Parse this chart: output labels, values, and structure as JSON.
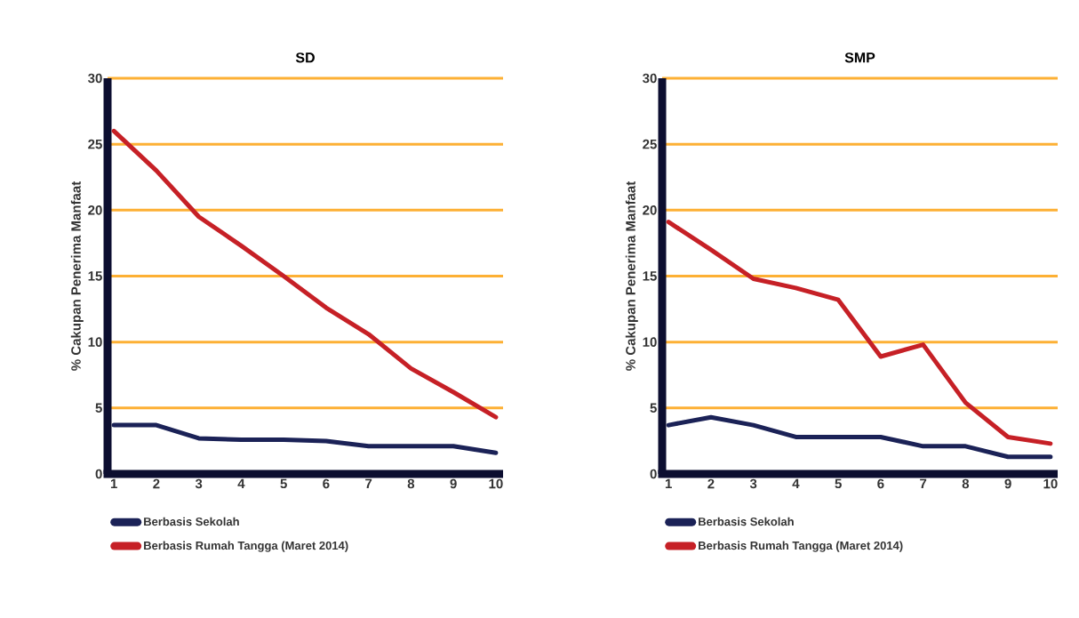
{
  "chart_data": [
    {
      "type": "line",
      "title": "SD",
      "ylabel": "% Cakupan Penerima Manfaat",
      "categories": [
        "1",
        "2",
        "3",
        "4",
        "5",
        "6",
        "7",
        "8",
        "9",
        "10"
      ],
      "series": [
        {
          "name": "Berbasis Sekolah",
          "color": "#1b2257",
          "values": [
            3.7,
            3.7,
            2.7,
            2.6,
            2.6,
            2.5,
            2.1,
            2.1,
            2.1,
            1.6
          ]
        },
        {
          "name": "Berbasis Rumah Tangga (Maret 2014)",
          "color": "#c62026",
          "values": [
            26,
            23,
            19.5,
            17.3,
            15,
            12.6,
            10.6,
            8,
            6.2,
            4.3
          ]
        }
      ],
      "ylim": [
        0,
        30
      ],
      "yticks": [
        0,
        5,
        10,
        15,
        20,
        25,
        30
      ],
      "grid": "y",
      "legend": "bottom",
      "marker": "none",
      "line_style": "solid"
    },
    {
      "type": "line",
      "title": "SMP",
      "ylabel": "% Cakupan Penerima Manfaat",
      "categories": [
        "1",
        "2",
        "3",
        "4",
        "5",
        "6",
        "7",
        "8",
        "9",
        "10"
      ],
      "series": [
        {
          "name": "Berbasis Sekolah",
          "color": "#1b2257",
          "values": [
            3.7,
            4.3,
            3.7,
            2.8,
            2.8,
            2.8,
            2.1,
            2.1,
            1.3,
            1.3
          ]
        },
        {
          "name": "Berbasis Rumah Tangga (Maret 2014)",
          "color": "#c62026",
          "values": [
            19.1,
            17,
            14.8,
            14.1,
            13.2,
            8.9,
            9.8,
            5.4,
            2.8,
            2.3
          ]
        }
      ],
      "ylim": [
        0,
        30
      ],
      "yticks": [
        0,
        5,
        10,
        15,
        20,
        25,
        30
      ],
      "grid": "y",
      "legend": "bottom",
      "marker": "none",
      "line_style": "solid"
    }
  ]
}
